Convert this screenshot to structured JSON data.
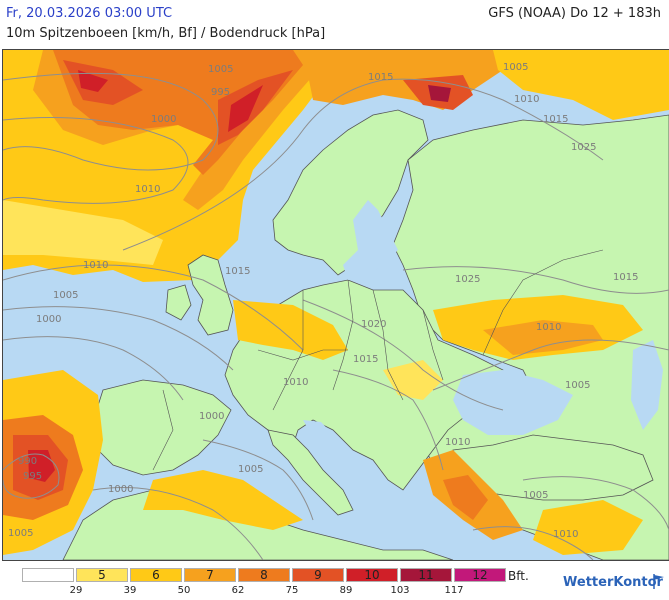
{
  "header": {
    "date": "Fr, 20.03.2026 03:00 UTC",
    "model": "GFS (NOAA) Do 12 + 183h",
    "title": "10m Spitzenboeen [km/h, Bf] / Bodendruck [hPa]"
  },
  "map": {
    "region": "Europe / North Atlantic / Mediterranean",
    "colors": {
      "sea": "#b8d9f3",
      "land_calm": "#c6f5b0",
      "bf5": "#ffe45a",
      "bf6": "#ffc916",
      "bf7": "#f6a11e",
      "bf8": "#ee7b1e",
      "bf9": "#e35225",
      "bf10": "#d01f28",
      "bf11": "#a5163a",
      "bf12": "#c2187a",
      "isobar": "#8e8e8e",
      "border": "#555555"
    },
    "isobar_labels": [
      {
        "text": "1005",
        "place": "north-atlantic-high"
      },
      {
        "text": "995",
        "place": "norwegian-sea"
      },
      {
        "text": "1000",
        "place": "north-atlantic"
      },
      {
        "text": "1010",
        "place": "north-atlantic"
      },
      {
        "text": "1015",
        "place": "scandinavia-north"
      },
      {
        "text": "1005",
        "place": "barents-sea"
      },
      {
        "text": "1010",
        "place": "northwest-russia"
      },
      {
        "text": "1015",
        "place": "northwest-russia"
      },
      {
        "text": "1025",
        "place": "central-russia"
      },
      {
        "text": "1010",
        "place": "biscay"
      },
      {
        "text": "1005",
        "place": "biscay"
      },
      {
        "text": "1000",
        "place": "biscay"
      },
      {
        "text": "1015",
        "place": "britain"
      },
      {
        "text": "1025",
        "place": "ukraine"
      },
      {
        "text": "1015",
        "place": "volga"
      },
      {
        "text": "1010",
        "place": "black-sea-north"
      },
      {
        "text": "1020",
        "place": "central-europe"
      },
      {
        "text": "1015",
        "place": "balkans"
      },
      {
        "text": "1010",
        "place": "adriatic"
      },
      {
        "text": "1000",
        "place": "balearic"
      },
      {
        "text": "1005",
        "place": "tyrrhenian"
      },
      {
        "text": "1005",
        "place": "black-sea"
      },
      {
        "text": "1010",
        "place": "greece"
      },
      {
        "text": "1005",
        "place": "turkey-south"
      },
      {
        "text": "990",
        "place": "portugal-low"
      },
      {
        "text": "995",
        "place": "portugal-low"
      },
      {
        "text": "1000",
        "place": "morocco"
      },
      {
        "text": "1005",
        "place": "morocco"
      },
      {
        "text": "1010",
        "place": "levant"
      }
    ]
  },
  "legend": {
    "unit": "Bft.",
    "bins": [
      {
        "label": "",
        "color": "#ffffff"
      },
      {
        "label": "5",
        "color": "#ffe45a"
      },
      {
        "label": "6",
        "color": "#ffc916"
      },
      {
        "label": "7",
        "color": "#f6a11e"
      },
      {
        "label": "8",
        "color": "#ee7b1e"
      },
      {
        "label": "9",
        "color": "#e35225"
      },
      {
        "label": "10",
        "color": "#d01f28"
      },
      {
        "label": "11",
        "color": "#a5163a"
      },
      {
        "label": "12",
        "color": "#c2187a"
      }
    ],
    "ticks": [
      "29",
      "39",
      "50",
      "62",
      "75",
      "89",
      "103",
      "117"
    ]
  },
  "brand": {
    "name": "WetterKontor",
    "icon": "wind-flag-icon"
  }
}
